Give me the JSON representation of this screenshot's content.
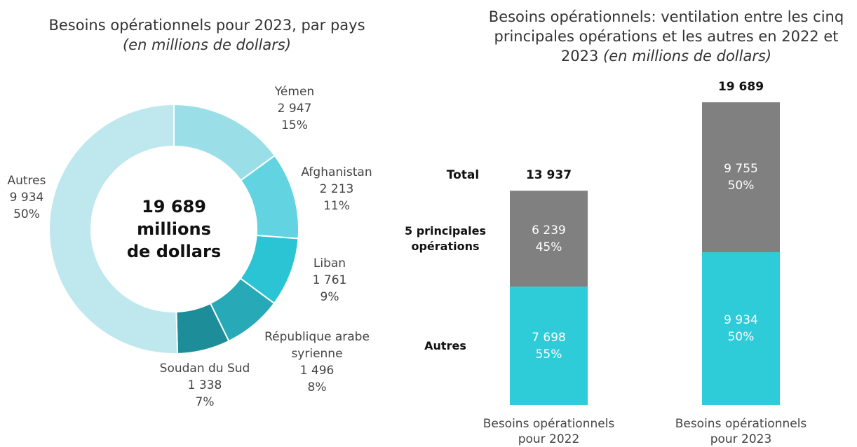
{
  "chart_data": [
    {
      "type": "donut",
      "title": "Besoins opérationnels pour 2023, par pays",
      "subtitle": "(en millions de dollars)",
      "center_label": [
        "19 689",
        "millions",
        "de dollars"
      ],
      "categories": [
        "Yémen",
        "Afghanistan",
        "Liban",
        "République arabe syrienne",
        "Soudan du Sud",
        "Autres"
      ],
      "values": [
        2947,
        2213,
        1761,
        1496,
        1338,
        9934
      ],
      "value_labels": [
        "2 947",
        "2 213",
        "1 761",
        "1 496",
        "1 338",
        "9 934"
      ],
      "percentages": [
        15,
        11,
        9,
        8,
        7,
        50
      ],
      "percentage_labels": [
        "15%",
        "11%",
        "9%",
        "8%",
        "7%",
        "50%"
      ],
      "colors": [
        "#9adfe8",
        "#62d3e0",
        "#2bc4d4",
        "#27a9b8",
        "#1d8e99",
        "#bfe8ee"
      ]
    },
    {
      "type": "stacked_bar",
      "title": "Besoins opérationnels: ventilation entre les cinq principales opérations et les autres en 2022 et 2023",
      "subtitle": "(en millions de dollars)",
      "categories": [
        "Besoins opérationnels pour 2022",
        "Besoins opérationnels pour 2023"
      ],
      "total_name": "Total",
      "totals": [
        13937,
        19689
      ],
      "total_labels": [
        "13 937",
        "19 689"
      ],
      "series": [
        {
          "name": "Autres",
          "color": "#2ecbd9",
          "values": [
            7698,
            9934
          ],
          "value_labels": [
            "7 698",
            "9 934"
          ],
          "percentages": [
            55,
            50
          ],
          "percentage_labels": [
            "55%",
            "50%"
          ]
        },
        {
          "name": "5 principales opérations",
          "color": "#808080",
          "values": [
            6239,
            9755
          ],
          "value_labels": [
            "6 239",
            "9 755"
          ],
          "percentages": [
            45,
            50
          ],
          "percentage_labels": [
            "45%",
            "50%"
          ]
        }
      ]
    }
  ]
}
